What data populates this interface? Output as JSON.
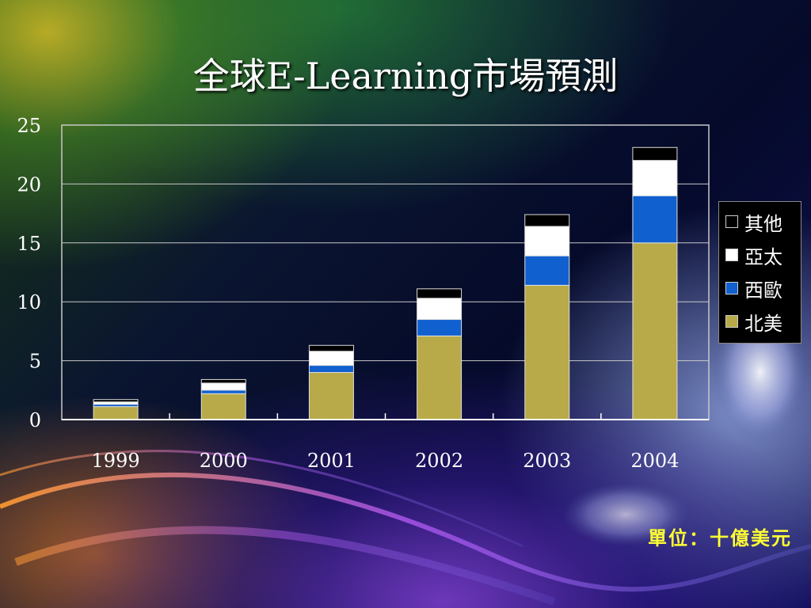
{
  "title": "全球E-Learning市場預測",
  "unit_note": "單位：十億美元",
  "chart_data": {
    "type": "bar",
    "stacked": true,
    "title": "全球E-Learning市場預測",
    "xlabel": "",
    "ylabel": "",
    "ylim": [
      0,
      25
    ],
    "yticks": [
      0,
      5,
      10,
      15,
      20,
      25
    ],
    "grid": true,
    "legend_position": "right",
    "categories": [
      "1999",
      "2000",
      "2001",
      "2002",
      "2003",
      "2004"
    ],
    "series": [
      {
        "name": "北美",
        "color": "#b8aa48",
        "values": [
          1.1,
          2.2,
          4.0,
          7.1,
          11.4,
          15.0
        ]
      },
      {
        "name": "西歐",
        "color": "#1060d0",
        "values": [
          0.2,
          0.3,
          0.6,
          1.4,
          2.5,
          4.0
        ]
      },
      {
        "name": "亞太",
        "color": "#ffffff",
        "values": [
          0.2,
          0.6,
          1.2,
          1.8,
          2.5,
          3.0
        ]
      },
      {
        "name": "其他",
        "color": "#000000",
        "values": [
          0.2,
          0.3,
          0.5,
          0.8,
          1.0,
          1.1
        ]
      }
    ]
  }
}
